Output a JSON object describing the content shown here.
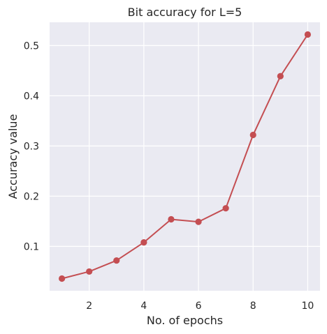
{
  "chart_data": {
    "type": "line",
    "title": "Bit accuracy for L=5",
    "xlabel": "No. of epochs",
    "ylabel": "Accuracy value",
    "x": [
      1,
      2,
      3,
      4,
      5,
      6,
      7,
      8,
      9,
      10
    ],
    "series": [
      {
        "values": [
          0.036,
          0.05,
          0.072,
          0.108,
          0.154,
          0.149,
          0.176,
          0.322,
          0.439,
          0.522
        ]
      }
    ],
    "xticks": [
      2,
      4,
      6,
      8,
      10
    ],
    "yticks": [
      0.1,
      0.2,
      0.3,
      0.4,
      0.5
    ],
    "ytick_labels": [
      "0.1",
      "0.2",
      "0.3",
      "0.4",
      "0.5"
    ],
    "xlim": [
      0.55,
      10.45
    ],
    "ylim": [
      0.0117,
      0.5463
    ],
    "grid": true,
    "colors": {
      "background": "#eaeaf2",
      "grid": "#ffffff",
      "line": "#c44e52"
    }
  }
}
